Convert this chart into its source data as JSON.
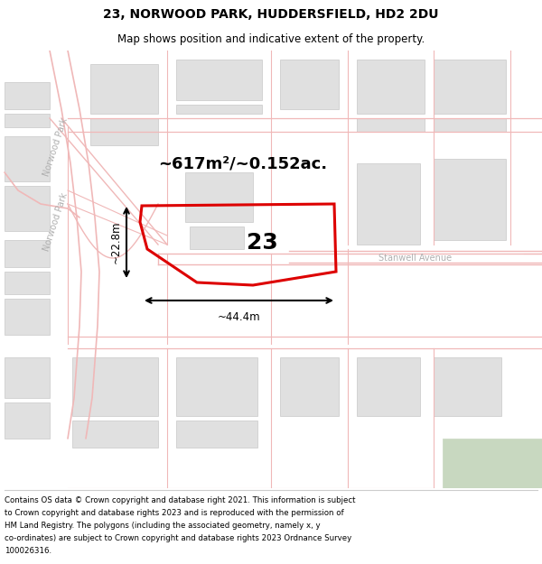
{
  "title": "23, NORWOOD PARK, HUDDERSFIELD, HD2 2DU",
  "subtitle": "Map shows position and indicative extent of the property.",
  "footer": "Contains OS data © Crown copyright and database right 2021. This information is subject to Crown copyright and database rights 2023 and is reproduced with the permission of HM Land Registry. The polygons (including the associated geometry, namely x, y co-ordinates) are subject to Crown copyright and database rights 2023 Ordnance Survey 100026316.",
  "area_label": "~617m²/~0.152ac.",
  "width_label": "~44.4m",
  "height_label": "~22.8m",
  "number_label": "23",
  "bg_color": "#ffffff",
  "road_color": "#f0b8b8",
  "road_fill": "#ffffff",
  "building_color": "#e0e0e0",
  "building_edge": "#c8c8c8",
  "green_color": "#c8d8c0",
  "plot_color": "#dd0000",
  "street_color": "#b0b0b0",
  "street_label_norwood": "Norwood Park",
  "street_label_stanwell": "Stanwell Avenue",
  "title_fontsize": 10,
  "subtitle_fontsize": 8.5,
  "footer_fontsize": 6.2,
  "area_fontsize": 13,
  "number_fontsize": 18,
  "street_fontsize": 7,
  "dim_fontsize": 8.5
}
